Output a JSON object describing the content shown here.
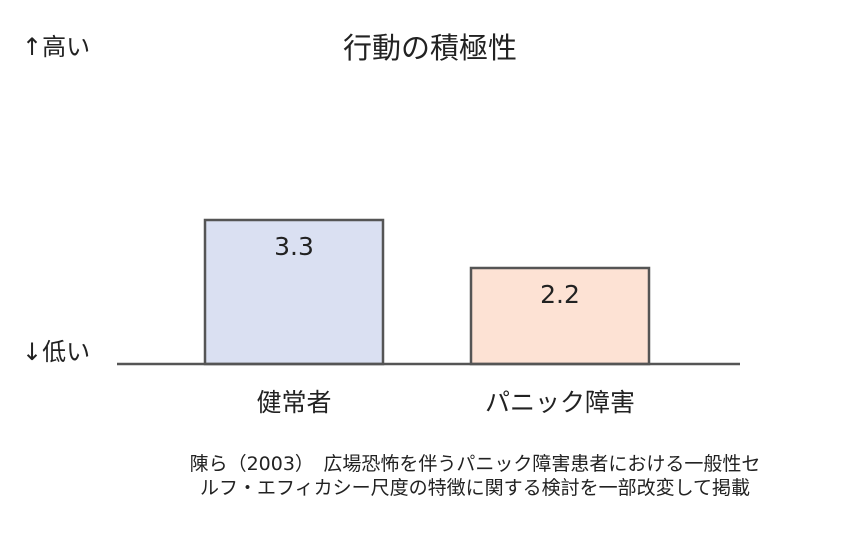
{
  "chart_data": {
    "type": "bar",
    "title": "行動の積極性",
    "categories": [
      "健常者",
      "パニック障害"
    ],
    "values": [
      3.3,
      2.2
    ],
    "value_labels": [
      "3.3",
      "2.2"
    ],
    "colors": [
      "#dae0f2",
      "#fde2d4"
    ],
    "bar_stroke": "#555555",
    "ylabel_high": "↑高い",
    "ylabel_low": "↓低い",
    "ylim": [
      0,
      4
    ],
    "grid": false
  },
  "caption": {
    "line1": "陳ら（2003）　広場恐怖を伴うパニック障害患者における一般性セ",
    "line2": "ルフ・エフィカシー尺度の特徴に関する検討を一部改変して掲載"
  }
}
